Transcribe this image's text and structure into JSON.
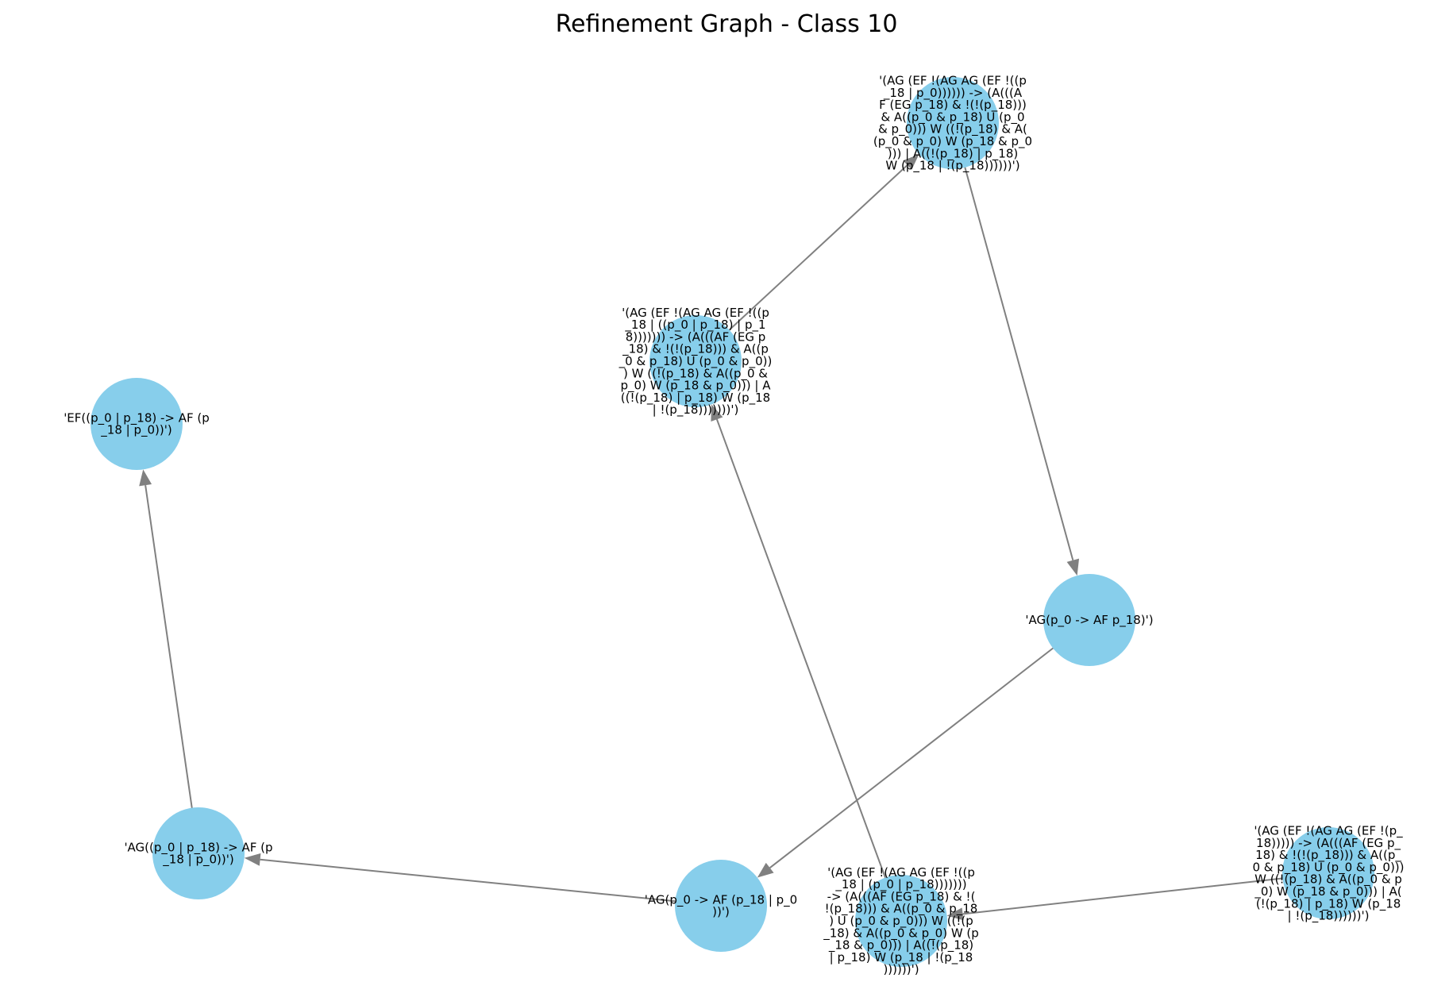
{
  "title": "Refinement Graph - Class 10",
  "colors": {
    "node": "#87ceeb",
    "edge": "#808080",
    "text": "#000000",
    "background": "#ffffff"
  },
  "nodes": [
    {
      "id": "n_top",
      "label_lines": [
        "'(AG (EF !(AG AG (EF !((p",
        "_18 | p_0)))))) -> (A(((A",
        "F (EG p_18) & !(!(p_18)))",
        "& A((p_0 & p_18) U (p_0",
        "& p_0))) W ((!(p_18) & A(",
        "(p_0 & p_0) W (p_18 & p_0",
        "))) | A((!(p_18) | p_18)",
        "W (p_18 | !(p_18))))))')"
      ]
    },
    {
      "id": "n_mid",
      "label_lines": [
        "'(AG (EF !(AG AG (EF !((p",
        "_18 | ((p_0 | p_18) | p_1",
        "8))))))) -> (A(((AF (EG p",
        "_18) & !(!(p_18))) & A((p",
        "_0 & p_18) U (p_0 & p_0))",
        ") W ((!(p_18) & A((p_0 &",
        "p_0) W (p_18 & p_0))) | A",
        "((!(p_18) | p_18) W (p_18",
        "| !(p_18)))))))')"
      ]
    },
    {
      "id": "n_ef",
      "label_lines": [
        "'EF((p_0 | p_18) -> AF (p",
        "_18 | p_0))')"
      ]
    },
    {
      "id": "n_agr",
      "label_lines": [
        "'AG(p_0 -> AF p_18)')"
      ]
    },
    {
      "id": "n_agl",
      "label_lines": [
        "'AG((p_0 | p_18) -> AF (p",
        "_18 | p_0))')"
      ]
    },
    {
      "id": "n_agc",
      "label_lines": [
        "'AG(p_0 -> AF (p_18 | p_0",
        "))')"
      ]
    },
    {
      "id": "n_bot",
      "label_lines": [
        "'(AG (EF !(AG AG (EF !((p",
        "_18 | (p_0 | p_18)))))))",
        "-> (A(((AF (EG p_18) & !(",
        "!(p_18))) & A((p_0 & p_18",
        ") U (p_0 & p_0))) W ((!(p",
        "_18) & A((p_0 & p_0) W (p",
        "_18 & p_0))) | A((!(p_18)",
        "| p_18) W (p_18 | !(p_18",
        "))))))')"
      ]
    },
    {
      "id": "n_right",
      "label_lines": [
        "'(AG (EF !(AG AG (EF !(p_",
        "18))))) -> (A(((AF (EG p_",
        "18) & !(!(p_18))) & A((p_",
        "0 & p_18) U (p_0 & p_0)))",
        "W ((!(p_18) & A((p_0 & p",
        "_0) W (p_18 & p_0))) | A(",
        "(!(p_18) | p_18) W (p_18",
        "| !(p_18))))))')"
      ]
    }
  ],
  "edges": [
    {
      "from": "n_mid",
      "to": "n_top"
    },
    {
      "from": "n_top",
      "to": "n_agr"
    },
    {
      "from": "n_agr",
      "to": "n_agc"
    },
    {
      "from": "n_agc",
      "to": "n_agl"
    },
    {
      "from": "n_agl",
      "to": "n_ef"
    },
    {
      "from": "n_bot",
      "to": "n_mid"
    },
    {
      "from": "n_right",
      "to": "n_bot"
    }
  ]
}
